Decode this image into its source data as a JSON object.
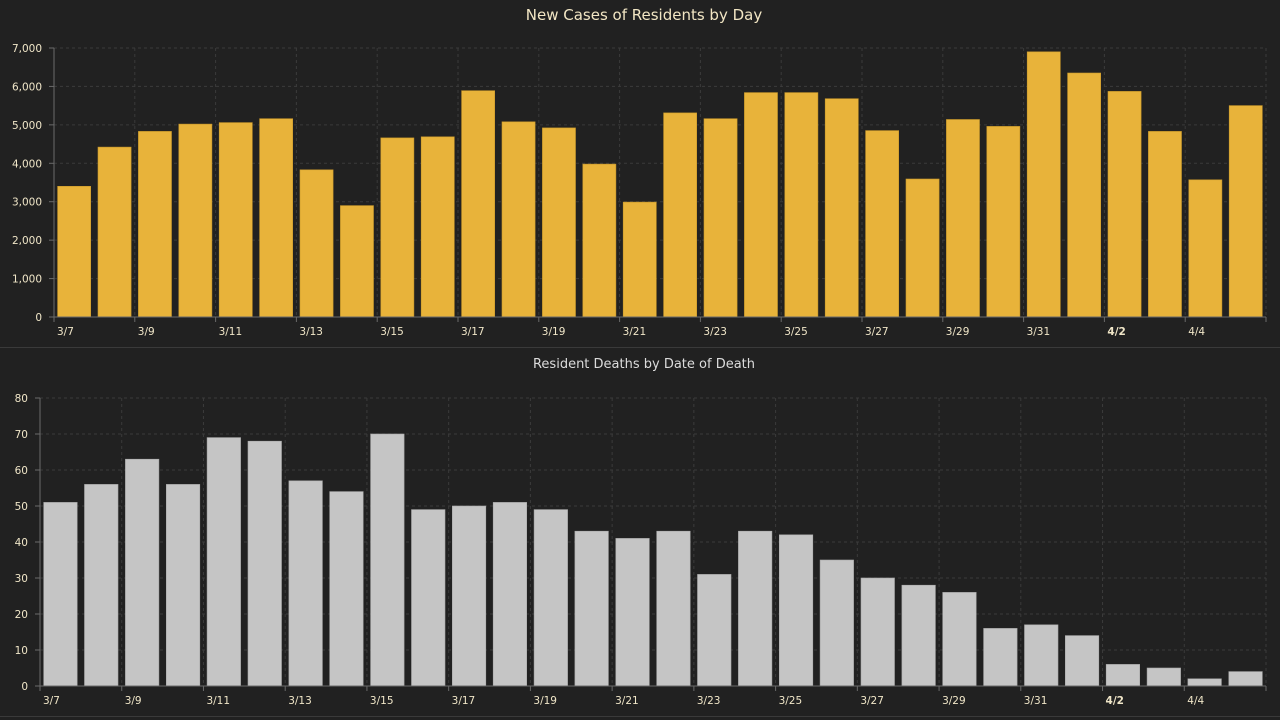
{
  "chart_data": [
    {
      "id": "cases",
      "type": "bar",
      "title": "New Cases of Residents by Day",
      "xlabel": "",
      "ylabel": "",
      "ylim": [
        0,
        7000
      ],
      "yticks": [
        0,
        1000,
        2000,
        3000,
        4000,
        5000,
        6000,
        7000
      ],
      "ytick_labels": [
        "0",
        "1,000",
        "2,000",
        "3,000",
        "4,000",
        "5,000",
        "6,000",
        "7,000"
      ],
      "grid": true,
      "bar_color": "#e8b33a",
      "categories": [
        "3/7",
        "3/8",
        "3/9",
        "3/10",
        "3/11",
        "3/12",
        "3/13",
        "3/14",
        "3/15",
        "3/16",
        "3/17",
        "3/18",
        "3/19",
        "3/20",
        "3/21",
        "3/22",
        "3/23",
        "3/24",
        "3/25",
        "3/26",
        "3/27",
        "3/28",
        "3/29",
        "3/30",
        "3/31",
        "4/1",
        "4/2",
        "4/3",
        "4/4",
        "4/5"
      ],
      "xtick_labels": [
        "3/7",
        "3/9",
        "3/11",
        "3/13",
        "3/15",
        "3/17",
        "3/19",
        "3/21",
        "3/23",
        "3/25",
        "3/27",
        "3/29",
        "3/31",
        "4/2",
        "4/4"
      ],
      "xtick_bold": [
        "4/2"
      ],
      "values": [
        3400,
        4420,
        4830,
        5020,
        5060,
        5160,
        3830,
        2900,
        4660,
        4690,
        5890,
        5080,
        4920,
        3980,
        2990,
        5310,
        5160,
        5840,
        5840,
        5680,
        4850,
        3590,
        5140,
        4960,
        6900,
        6350,
        5870,
        4830,
        3570,
        5500
      ]
    },
    {
      "id": "deaths",
      "type": "bar",
      "title": "Resident Deaths by Date of Death",
      "xlabel": "",
      "ylabel": "",
      "ylim": [
        0,
        80
      ],
      "yticks": [
        0,
        10,
        20,
        30,
        40,
        50,
        60,
        70,
        80
      ],
      "ytick_labels": [
        "0",
        "10",
        "20",
        "30",
        "40",
        "50",
        "60",
        "70",
        "80"
      ],
      "grid": true,
      "bar_color": "#c5c5c5",
      "categories": [
        "3/7",
        "3/8",
        "3/9",
        "3/10",
        "3/11",
        "3/12",
        "3/13",
        "3/14",
        "3/15",
        "3/16",
        "3/17",
        "3/18",
        "3/19",
        "3/20",
        "3/21",
        "3/22",
        "3/23",
        "3/24",
        "3/25",
        "3/26",
        "3/27",
        "3/28",
        "3/29",
        "3/30",
        "3/31",
        "4/1",
        "4/2",
        "4/3",
        "4/4",
        "4/5"
      ],
      "xtick_labels": [
        "3/7",
        "3/9",
        "3/11",
        "3/13",
        "3/15",
        "3/17",
        "3/19",
        "3/21",
        "3/23",
        "3/25",
        "3/27",
        "3/29",
        "3/31",
        "4/2",
        "4/4"
      ],
      "xtick_bold": [
        "4/2"
      ],
      "values": [
        51,
        56,
        63,
        56,
        69,
        68,
        57,
        54,
        70,
        49,
        50,
        51,
        49,
        43,
        41,
        43,
        31,
        43,
        42,
        35,
        30,
        28,
        26,
        16,
        17,
        14,
        6,
        5,
        2,
        4
      ]
    }
  ]
}
